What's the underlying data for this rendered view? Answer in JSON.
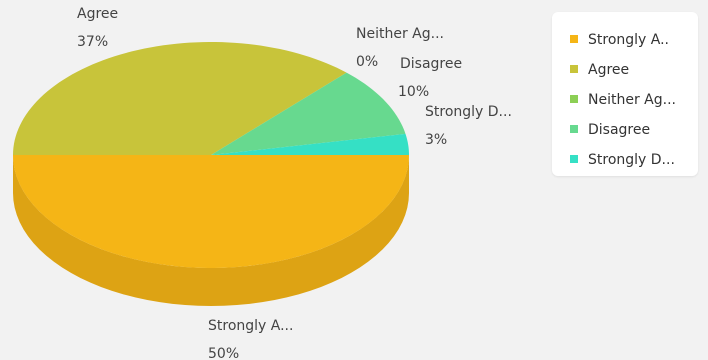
{
  "chart_data": {
    "type": "pie",
    "title": "",
    "categories": [
      "Strongly A...",
      "Agree",
      "Neither Ag...",
      "Disagree",
      "Strongly D..."
    ],
    "values": [
      50,
      37,
      0,
      10,
      3
    ],
    "value_labels": [
      "50%",
      "37%",
      "0%",
      "10%",
      "3%"
    ],
    "colors": [
      "#f5b516",
      "#c8c43a",
      "#8ccf55",
      "#67d98f",
      "#35e0c5"
    ],
    "legend": {
      "position": "right",
      "entries": [
        "Strongly A..",
        "Agree",
        "Neither Ag...",
        "Disagree",
        "Strongly D..."
      ]
    },
    "style": "3d"
  }
}
